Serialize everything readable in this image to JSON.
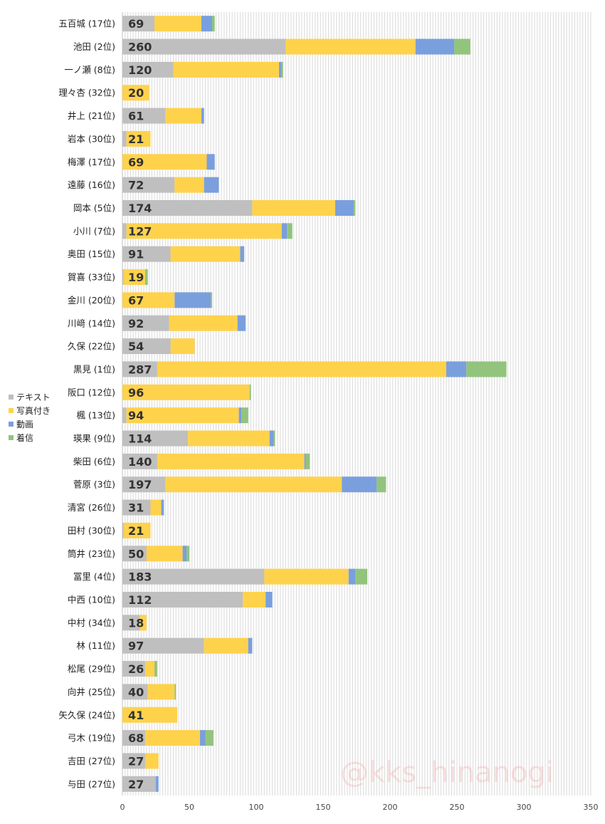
{
  "chart_data": {
    "type": "bar",
    "orientation": "horizontal",
    "stacked": true,
    "xlim": [
      0,
      350
    ],
    "x_ticks": [
      0,
      50,
      100,
      150,
      200,
      250,
      300,
      350
    ],
    "grid": true,
    "legend_position": "left",
    "watermark": "@kks_hinanogi",
    "categories": [
      "五百城 (17位)",
      "池田 (2位)",
      "一ノ瀬 (8位)",
      "理々杏 (32位)",
      "井上 (21位)",
      "岩本 (30位)",
      "梅澤 (17位)",
      "遠藤 (16位)",
      "岡本 (5位)",
      "小川 (7位)",
      "奥田 (15位)",
      "賀喜 (33位)",
      "金川 (20位)",
      "川﨑 (14位)",
      "久保 (22位)",
      "黒見 (1位)",
      "阪口 (12位)",
      "楓 (13位)",
      "瑛果 (9位)",
      "柴田 (6位)",
      "菅原 (3位)",
      "清宮 (26位)",
      "田村 (30位)",
      "筒井 (23位)",
      "冨里 (4位)",
      "中西 (10位)",
      "中村 (34位)",
      "林 (11位)",
      "松尾 (29位)",
      "向井 (25位)",
      "矢久保 (24位)",
      "弓木 (19位)",
      "吉田 (27位)",
      "与田 (27位)"
    ],
    "totals": [
      69,
      260,
      120,
      20,
      61,
      21,
      69,
      72,
      174,
      127,
      91,
      19,
      67,
      92,
      54,
      287,
      96,
      94,
      114,
      140,
      197,
      31,
      21,
      50,
      183,
      112,
      18,
      97,
      26,
      40,
      41,
      68,
      27,
      27
    ],
    "series": [
      {
        "name": "テキスト",
        "color": "#bfbfbf",
        "values": [
          24,
          122,
          38,
          0,
          32,
          3,
          0,
          39,
          97,
          3,
          36,
          1,
          0,
          35,
          36,
          26,
          0,
          3,
          49,
          26,
          32,
          21,
          1,
          18,
          106,
          90,
          13,
          61,
          17,
          19,
          0,
          17,
          17,
          25
        ]
      },
      {
        "name": "写真付き",
        "color": "#ffd24c",
        "values": [
          35,
          97,
          79,
          20,
          27,
          18,
          63,
          22,
          62,
          116,
          52,
          16,
          39,
          51,
          18,
          216,
          95,
          84,
          61,
          110,
          132,
          8,
          20,
          27,
          63,
          17,
          5,
          33,
          7,
          20,
          41,
          41,
          10,
          0
        ]
      },
      {
        "name": "動画",
        "color": "#7a9fdd",
        "values": [
          8,
          29,
          2,
          0,
          2,
          0,
          6,
          11,
          14,
          4,
          3,
          0,
          27,
          6,
          0,
          15,
          0,
          2,
          3,
          1,
          26,
          2,
          0,
          3,
          5,
          5,
          0,
          3,
          0,
          0,
          0,
          4,
          0,
          2
        ]
      },
      {
        "name": "着信",
        "color": "#92c47d",
        "values": [
          2,
          12,
          1,
          0,
          0,
          0,
          0,
          0,
          1,
          4,
          0,
          2,
          1,
          0,
          0,
          30,
          1,
          5,
          1,
          3,
          7,
          0,
          0,
          2,
          9,
          0,
          0,
          0,
          2,
          1,
          0,
          6,
          0,
          0
        ]
      }
    ]
  }
}
